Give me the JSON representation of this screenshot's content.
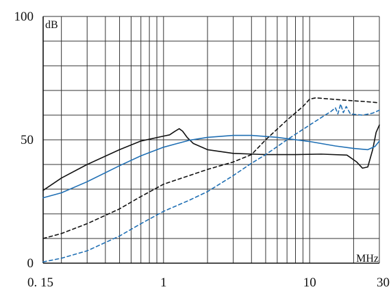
{
  "chart_data": {
    "type": "line",
    "title": "",
    "xlabel": "MHz",
    "ylabel": "dB",
    "x_scale": "log",
    "xlim": [
      0.15,
      30
    ],
    "ylim": [
      0,
      100
    ],
    "grid": true,
    "x_tick_labels": [
      {
        "value": 0.15,
        "label": "0. 15"
      },
      {
        "value": 1,
        "label": "1"
      },
      {
        "value": 10,
        "label": "10"
      },
      {
        "value": 30,
        "label": "30"
      }
    ],
    "y_tick_labels": [
      {
        "value": 100,
        "label": "100"
      },
      {
        "value": 50,
        "label": "50"
      },
      {
        "value": 0,
        "label": "0"
      }
    ],
    "series": [
      {
        "color": "#111111",
        "dash": "solid",
        "points": [
          [
            0.15,
            29.5
          ],
          [
            0.2,
            34.5
          ],
          [
            0.3,
            40
          ],
          [
            0.5,
            46
          ],
          [
            0.7,
            49.5
          ],
          [
            1.0,
            51.5
          ],
          [
            1.1,
            52
          ],
          [
            1.2,
            53.5
          ],
          [
            1.28,
            54.5
          ],
          [
            1.35,
            53.5
          ],
          [
            1.45,
            51
          ],
          [
            1.6,
            48.5
          ],
          [
            2.0,
            46
          ],
          [
            3.0,
            44.5
          ],
          [
            5.0,
            44
          ],
          [
            8.0,
            44
          ],
          [
            12.0,
            44.2
          ],
          [
            18.0,
            43.8
          ],
          [
            21.0,
            41
          ],
          [
            23.0,
            38.5
          ],
          [
            25.0,
            39
          ],
          [
            27.0,
            46
          ],
          [
            28.5,
            53
          ],
          [
            30.0,
            56
          ]
        ]
      },
      {
        "color": "#1f6fb4",
        "dash": "solid",
        "points": [
          [
            0.15,
            26.5
          ],
          [
            0.2,
            28.5
          ],
          [
            0.3,
            33
          ],
          [
            0.5,
            39.5
          ],
          [
            0.7,
            43.5
          ],
          [
            1.0,
            47
          ],
          [
            1.5,
            49.8
          ],
          [
            2.0,
            51
          ],
          [
            3.0,
            51.8
          ],
          [
            4.0,
            51.8
          ],
          [
            6.0,
            51
          ],
          [
            10.0,
            49.3
          ],
          [
            15.0,
            47.5
          ],
          [
            20.0,
            46.5
          ],
          [
            25.0,
            46
          ],
          [
            28.0,
            47.3
          ],
          [
            30.0,
            49.5
          ]
        ]
      },
      {
        "color": "#111111",
        "dash": "dashed",
        "points": [
          [
            0.15,
            10
          ],
          [
            0.2,
            12
          ],
          [
            0.3,
            16
          ],
          [
            0.5,
            22
          ],
          [
            0.7,
            27
          ],
          [
            1.0,
            32
          ],
          [
            1.5,
            35.5
          ],
          [
            2.0,
            38
          ],
          [
            3.0,
            41
          ],
          [
            4.0,
            44
          ],
          [
            5.0,
            50
          ],
          [
            7.0,
            58
          ],
          [
            9.0,
            63.5
          ],
          [
            10.0,
            66.5
          ],
          [
            11.0,
            67
          ],
          [
            14.0,
            66.5
          ],
          [
            18.0,
            66
          ],
          [
            24.0,
            65.5
          ],
          [
            30.0,
            65
          ]
        ]
      },
      {
        "color": "#1f6fb4",
        "dash": "dashed",
        "points": [
          [
            0.15,
            0.5
          ],
          [
            0.2,
            2
          ],
          [
            0.3,
            5
          ],
          [
            0.5,
            11
          ],
          [
            0.7,
            16
          ],
          [
            1.0,
            21
          ],
          [
            1.5,
            25.5
          ],
          [
            2.0,
            29
          ],
          [
            3.0,
            35.5
          ],
          [
            4.0,
            40.5
          ],
          [
            5.0,
            44
          ],
          [
            7.0,
            50
          ],
          [
            10.0,
            56
          ],
          [
            12.0,
            59
          ],
          [
            14.0,
            61.5
          ],
          [
            15.0,
            63
          ],
          [
            15.6,
            60.5
          ],
          [
            16.3,
            64.5
          ],
          [
            17.0,
            61
          ],
          [
            17.8,
            63.5
          ],
          [
            19.0,
            60.5
          ],
          [
            23.0,
            60
          ],
          [
            27.0,
            60.8
          ],
          [
            30.0,
            62
          ]
        ]
      }
    ]
  }
}
